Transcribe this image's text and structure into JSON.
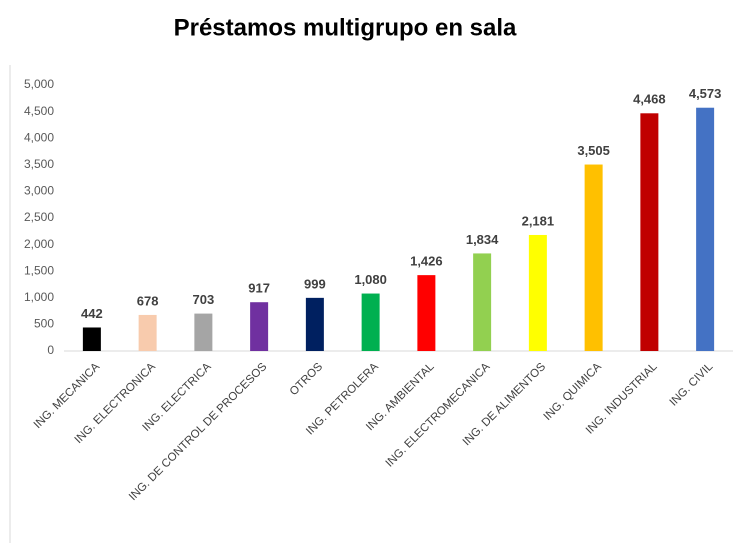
{
  "chart_data": {
    "type": "bar",
    "title": "Préstamos multigrupo en sala",
    "categories": [
      "ING. MECANICA",
      "ING. ELECTRONICA",
      "ING. ELECTRICA",
      "ING. DE CONTROL DE PROCESOS",
      "OTROS",
      "ING. PETROLERA",
      "ING. AMBIENTAL",
      "ING. ELECTROMECANICA",
      "ING. DE ALIMENTOS",
      "ING. QUIMICA",
      "ING. INDUSTRIAL",
      "ING. CIVIL"
    ],
    "values": [
      442,
      678,
      703,
      917,
      999,
      1080,
      1426,
      1834,
      2181,
      3505,
      4468,
      4573
    ],
    "value_labels": [
      "442",
      "678",
      "703",
      "917",
      "999",
      "1,080",
      "1,426",
      "1,834",
      "2,181",
      "3,505",
      "4,468",
      "4,573"
    ],
    "colors": [
      "#000000",
      "#f8cbad",
      "#a5a5a5",
      "#7030a0",
      "#002060",
      "#00b050",
      "#ff0000",
      "#92d050",
      "#ffff00",
      "#ffc000",
      "#c00000",
      "#4472c4"
    ],
    "ylim": [
      0,
      5000
    ],
    "yticks": [
      0,
      500,
      {
        "value": 1000,
        "label": "1,000"
      },
      {
        "value": 1500,
        "label": "1,500"
      },
      {
        "value": 2000,
        "label": "2,000"
      },
      {
        "value": 2500,
        "label": "2,500"
      },
      {
        "value": 3000,
        "label": "3,000"
      },
      {
        "value": 3500,
        "label": "3,500"
      },
      {
        "value": 4000,
        "label": "4,000"
      },
      {
        "value": 4500,
        "label": "4,500"
      },
      {
        "value": 5000,
        "label": "5,000"
      }
    ],
    "grid": false
  }
}
